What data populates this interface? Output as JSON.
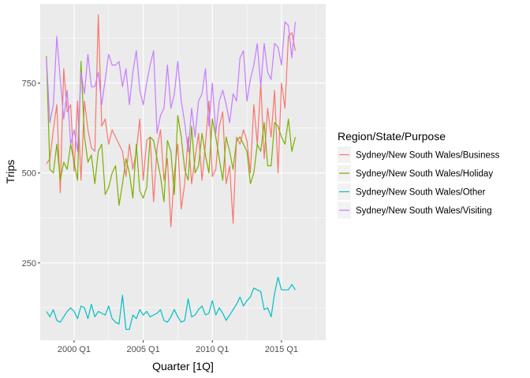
{
  "chart_data": {
    "type": "line",
    "xlabel": "Quarter [1Q]",
    "ylabel": "Trips",
    "legend_title": "Region/State/Purpose",
    "legend_position": "right",
    "grid": true,
    "x_start": 1998,
    "x_step": 0.25,
    "xlim": [
      1997.55,
      2018.2
    ],
    "ylim": [
      35,
      970
    ],
    "x_ticks": [
      {
        "value": 2000,
        "label": "2000 Q1"
      },
      {
        "value": 2005,
        "label": "2005 Q1"
      },
      {
        "value": 2010,
        "label": "2010 Q1"
      },
      {
        "value": 2015,
        "label": "2015 Q1"
      }
    ],
    "y_ticks": [
      {
        "value": 250,
        "label": "250"
      },
      {
        "value": 500,
        "label": "500"
      },
      {
        "value": 750,
        "label": "750"
      }
    ],
    "series": [
      {
        "name": "Sydney/New South Wales/Business",
        "color": "#F8766D",
        "values": [
          525,
          540,
          620,
          690,
          445,
          790,
          670,
          690,
          505,
          700,
          480,
          700,
          620,
          570,
          560,
          940,
          630,
          650,
          580,
          620,
          600,
          580,
          560,
          490,
          580,
          510,
          560,
          650,
          480,
          590,
          600,
          420,
          570,
          620,
          480,
          540,
          350,
          500,
          580,
          400,
          470,
          600,
          470,
          540,
          610,
          480,
          580,
          700,
          490,
          510,
          630,
          670,
          470,
          520,
          360,
          600,
          580,
          620,
          590,
          500,
          690,
          580,
          750,
          540,
          680,
          600,
          730,
          500,
          750,
          680,
          880,
          890,
          840
        ]
      },
      {
        "name": "Sydney/New South Wales/Holiday",
        "color": "#7CAE00",
        "values": [
          825,
          510,
          500,
          580,
          480,
          530,
          510,
          580,
          530,
          480,
          810,
          600,
          530,
          550,
          470,
          560,
          580,
          440,
          460,
          500,
          520,
          410,
          470,
          540,
          500,
          430,
          580,
          450,
          430,
          460,
          600,
          590,
          540,
          490,
          420,
          590,
          560,
          440,
          660,
          600,
          510,
          480,
          630,
          500,
          520,
          610,
          550,
          500,
          650,
          600,
          540,
          480,
          600,
          560,
          510,
          590,
          600,
          580,
          560,
          470,
          500,
          580,
          560,
          640,
          520,
          520,
          640,
          630,
          600,
          580,
          650,
          560,
          600
        ]
      },
      {
        "name": "Sydney/New South Wales/Other",
        "color": "#00BFC4",
        "values": [
          115,
          100,
          120,
          90,
          85,
          100,
          115,
          125,
          115,
          95,
          130,
          125,
          95,
          135,
          100,
          115,
          110,
          105,
          130,
          95,
          85,
          80,
          160,
          65,
          65,
          105,
          95,
          120,
          105,
          115,
          100,
          105,
          110,
          120,
          90,
          85,
          100,
          120,
          100,
          85,
          90,
          150,
          100,
          105,
          120,
          130,
          105,
          110,
          145,
          105,
          125,
          110,
          90,
          105,
          120,
          135,
          155,
          130,
          145,
          155,
          180,
          175,
          170,
          120,
          125,
          100,
          165,
          210,
          175,
          175,
          175,
          190,
          175
        ]
      },
      {
        "name": "Sydney/New South Wales/Visiting",
        "color": "#C77CFF",
        "values": [
          820,
          640,
          690,
          880,
          760,
          650,
          730,
          580,
          620,
          560,
          780,
          720,
          830,
          740,
          740,
          780,
          690,
          760,
          830,
          800,
          800,
          810,
          740,
          790,
          690,
          780,
          840,
          730,
          690,
          750,
          800,
          840,
          610,
          660,
          680,
          800,
          680,
          720,
          810,
          700,
          640,
          560,
          680,
          600,
          700,
          720,
          790,
          630,
          750,
          610,
          700,
          730,
          690,
          640,
          720,
          700,
          820,
          840,
          700,
          760,
          800,
          860,
          740,
          860,
          780,
          760,
          860,
          850,
          800,
          920,
          910,
          820,
          920
        ]
      }
    ]
  }
}
